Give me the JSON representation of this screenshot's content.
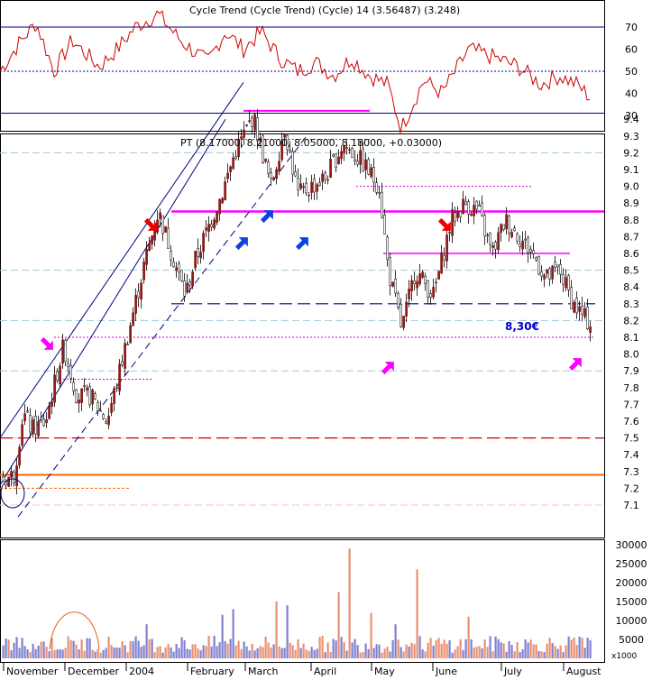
{
  "rsi_panel": {
    "header": "Cycle Trend (Cycle Trend) (Cycle) 14 (3.56487) (3.248)",
    "ticks": [
      30,
      40,
      50,
      60,
      70
    ],
    "tick_labels": [
      "30",
      "40",
      "50",
      "60",
      "70"
    ],
    "upper_level": 70,
    "mid_level": 50,
    "lower_level": 31,
    "line_color": "#cc0000"
  },
  "price_panel": {
    "header": "PT (8.17000, 8.21000, 8.05000, 8.18000, +0.03000)",
    "ticks": [
      7.1,
      7.2,
      7.3,
      7.4,
      7.5,
      7.6,
      7.7,
      7.8,
      7.9,
      8.0,
      8.1,
      8.2,
      8.3,
      8.4,
      8.5,
      8.6,
      8.7,
      8.8,
      8.9,
      9.0,
      9.1,
      9.2,
      9.3,
      9.4
    ],
    "tick_labels": [
      "7.1",
      "7.2",
      "7.3",
      "7.4",
      "7.5",
      "7.6",
      "7.7",
      "7.8",
      "7.9",
      "8.0",
      "8.1",
      "8.2",
      "8.3",
      "8.4",
      "8.5",
      "8.6",
      "8.7",
      "8.8",
      "8.9",
      "9.0",
      "9.1",
      "9.2",
      "9.3",
      "9.4"
    ],
    "annotation_label": "8,30€",
    "support_level": 8.3,
    "resistance_level": 8.85,
    "up_color": "#8b1a1a",
    "down_color": "#ffffff",
    "magenta": "#ff00ff",
    "navy": "#000080",
    "orange": "#ff6600",
    "red_dash": "#cc0000"
  },
  "volume_panel": {
    "ticks": [
      5000,
      10000,
      15000,
      20000,
      25000,
      30000
    ],
    "tick_labels": [
      "5000",
      "10000",
      "15000",
      "20000",
      "25000",
      "30000"
    ],
    "unit_label": "x1000",
    "up_color": "#e89070",
    "down_color": "#8080d0"
  },
  "x_axis": {
    "labels": [
      "November",
      "December",
      "2004",
      "February",
      "March",
      "April",
      "May",
      "June",
      "July",
      "August"
    ]
  },
  "chart_data": {
    "type": "candlestick",
    "title": "PT (8.17000, 8.21000, 8.05000, 8.18000, +0.03000)",
    "x_period": "November 2003 – August 2004 (daily)",
    "ohlc_key_points": [
      {
        "t": "early November",
        "close": 7.25
      },
      {
        "t": "late November",
        "close": 8.05
      },
      {
        "t": "mid December",
        "close": 7.65
      },
      {
        "t": "mid January",
        "close": 8.8
      },
      {
        "t": "late January",
        "close": 8.35
      },
      {
        "t": "early March",
        "close": 9.4
      },
      {
        "t": "late March",
        "close": 8.95
      },
      {
        "t": "late April",
        "close": 9.3
      },
      {
        "t": "mid May",
        "close": 8.15
      },
      {
        "t": "mid June",
        "close": 8.9
      },
      {
        "t": "mid July",
        "close": 8.6
      },
      {
        "t": "August",
        "close": 8.18
      }
    ],
    "last_bar": {
      "open": 8.17,
      "high": 8.21,
      "low": 8.05,
      "close": 8.18,
      "change": 0.03
    },
    "horizontal_levels": [
      9.45,
      8.85,
      8.6,
      8.3,
      8.1,
      7.5,
      7.28
    ],
    "y_range": [
      7.05,
      9.5
    ],
    "rsi_range": [
      20,
      80
    ],
    "volume_range": [
      0,
      32000
    ]
  }
}
